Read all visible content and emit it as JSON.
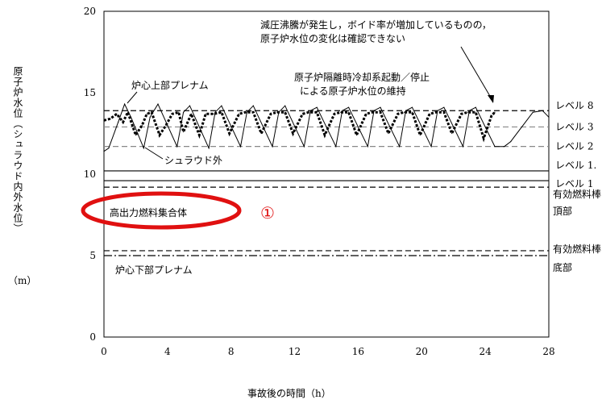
{
  "chart_data": {
    "type": "line",
    "ylabel": "原子炉水位（シュラウド内外水位）",
    "yunit": "（m）",
    "xlabel": "事故後の時間（h）",
    "xlim": [
      0,
      28
    ],
    "ylim": [
      0,
      20
    ],
    "xticks": [
      "0",
      "4",
      "8",
      "12",
      "16",
      "20",
      "24",
      "28"
    ],
    "yticks": [
      "0",
      "5",
      "10",
      "15",
      "20"
    ],
    "reference_levels": [
      {
        "label": "レベル 8",
        "value": 13.9,
        "style": "dashed"
      },
      {
        "label": "レベル 3",
        "value": 12.9,
        "style": "dashed-gray"
      },
      {
        "label": "レベル 2",
        "value": 11.7,
        "style": "dashed-gray"
      },
      {
        "label": "レベル 1.",
        "value": 10.2,
        "style": "solid"
      },
      {
        "label": "レベル 1",
        "value": 9.6,
        "style": "solid"
      },
      {
        "label": "有効燃料棒頂部",
        "value": 9.2,
        "style": "dashed"
      },
      {
        "label": "有効燃料棒底部",
        "value": 5.3,
        "style": "dashed"
      },
      {
        "label": "",
        "value": 5.0,
        "style": "dashdot"
      }
    ],
    "series": [
      {
        "style": "thin-solid",
        "x": [
          0,
          0.3,
          0.9,
          1.3,
          1.7,
          2.5,
          2.9,
          3.4,
          4.6,
          5.0,
          5.4,
          6.6,
          7.0,
          7.4,
          8.6,
          9.0,
          9.4,
          10.6,
          11.0,
          11.4,
          12.6,
          13.0,
          13.4,
          14.6,
          15.0,
          15.4,
          16.6,
          17.0,
          17.4,
          18.6,
          19.0,
          19.4,
          20.6,
          21.0,
          21.4,
          22.6,
          23.0,
          23.4,
          24.6,
          25.2,
          25.6,
          27.0,
          27.6,
          28.0
        ],
        "y": [
          11.4,
          11.6,
          13.2,
          14.3,
          13.5,
          11.6,
          13.5,
          14.3,
          11.7,
          13.8,
          14.2,
          11.6,
          13.8,
          14.2,
          11.7,
          13.8,
          14.2,
          11.7,
          13.8,
          14.2,
          11.7,
          13.9,
          14.1,
          11.7,
          13.9,
          14.1,
          11.7,
          13.9,
          14.1,
          11.7,
          13.9,
          14.1,
          11.7,
          13.9,
          14.1,
          11.7,
          13.9,
          14.1,
          11.7,
          11.7,
          12.0,
          13.8,
          13.9,
          13.5
        ]
      },
      {
        "style": "thick-dotted",
        "x": [
          0,
          0.4,
          0.8,
          1.2,
          1.5,
          2.0,
          2.4,
          2.7,
          3.0,
          3.5,
          3.9,
          4.3,
          4.7,
          5.0,
          5.5,
          6.0,
          6.4,
          6.9,
          7.4,
          7.9,
          8.5,
          8.9,
          9.4,
          9.9,
          10.5,
          10.9,
          11.4,
          11.9,
          12.5,
          12.9,
          13.4,
          13.9,
          14.5,
          14.9,
          15.4,
          15.9,
          16.5,
          16.9,
          17.4,
          17.9,
          18.5,
          18.9,
          19.4,
          19.9,
          20.5,
          20.9,
          21.4,
          21.9,
          22.5,
          22.9,
          23.4,
          23.9,
          24.4,
          24.6
        ],
        "y": [
          13.3,
          13.4,
          13.7,
          13.2,
          13.8,
          12.4,
          13.0,
          13.7,
          13.8,
          12.4,
          13.0,
          13.7,
          13.8,
          12.6,
          13.7,
          12.4,
          13.7,
          13.7,
          13.8,
          12.5,
          13.7,
          13.8,
          13.8,
          12.5,
          13.7,
          13.8,
          13.8,
          12.5,
          13.7,
          13.8,
          13.8,
          12.4,
          13.7,
          13.8,
          13.8,
          12.4,
          13.7,
          13.8,
          13.8,
          12.5,
          13.7,
          13.8,
          13.8,
          12.4,
          13.7,
          13.8,
          13.8,
          12.5,
          13.7,
          13.8,
          13.8,
          12.2,
          13.6,
          13.8
        ]
      }
    ],
    "annotations": {
      "upper_plenum": "炉心上部プレナム",
      "shroud_outside": "シュラウド外",
      "rcic_line1": "原子炉隔離時冷却系起動／停止",
      "rcic_line2": "による原子炉水位の維持",
      "boiling_line1": "減圧沸騰が発生し，ボイド率が増加しているものの，",
      "boiling_line2": "原子炉水位の変化は確認できない",
      "high_power_fuel": "高出力燃料集合体",
      "lower_plenum": "炉心下部プレナム",
      "circled_number": "①",
      "tip_label_line1": "有効燃料棒",
      "tip_label_line2": "頂部",
      "bip_label_line1": "有効燃料棒",
      "bip_label_line2": "底部"
    }
  }
}
